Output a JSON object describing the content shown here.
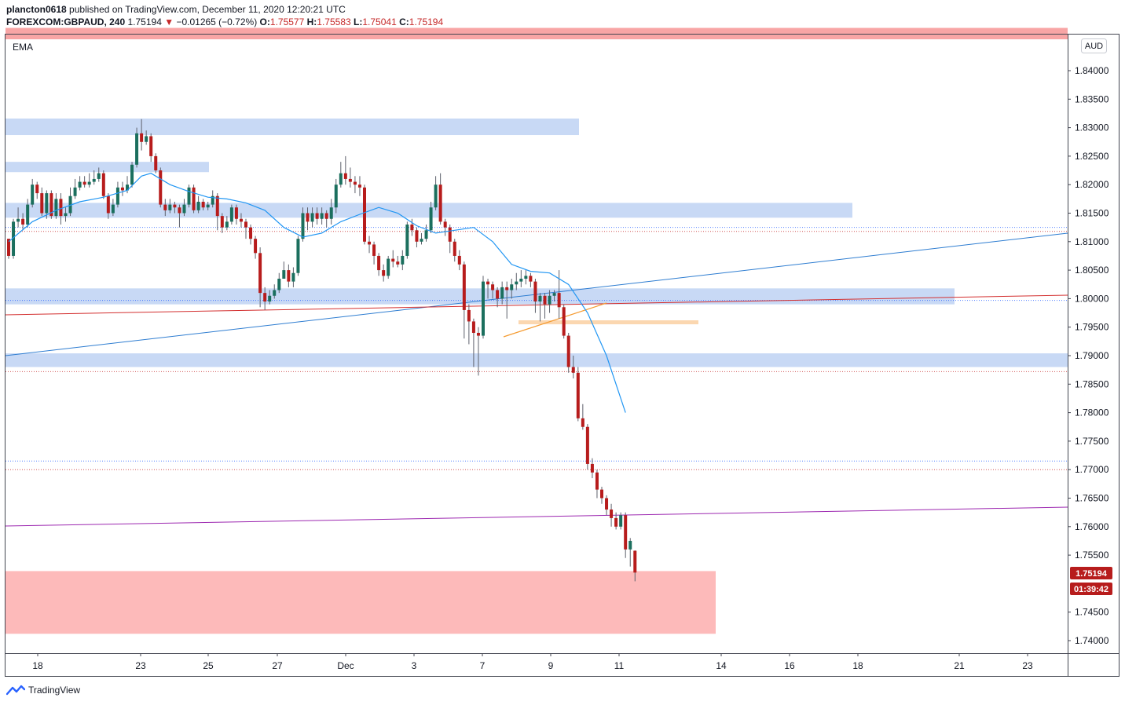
{
  "header": {
    "publisher": "plancton0618",
    "published_text": "published on TradingView.com, December 11, 2020 12:20:21 UTC",
    "symbol": "FOREXCOM:GBPAUD, 240",
    "last": "1.75194",
    "arrow": "▼",
    "change": "−0.01265 (−0.72%)",
    "o_label": "O:",
    "o_value": "1.75577",
    "h_label": "H:",
    "h_value": "1.75583",
    "l_label": "L:",
    "l_value": "1.75041",
    "c_label": "C:",
    "c_value": "1.75194"
  },
  "indicator_label": "EMA",
  "currency_badge": "AUD",
  "price_tag": "1.75194",
  "countdown_tag": "01:39:42",
  "brand": "TradingView",
  "chart_data": {
    "type": "candlestick",
    "y_ticks": [
      "1.84000",
      "1.83500",
      "1.83000",
      "1.82500",
      "1.82000",
      "1.81500",
      "1.81000",
      "1.80500",
      "1.80000",
      "1.79500",
      "1.79000",
      "1.78500",
      "1.78000",
      "1.77500",
      "1.77000",
      "1.76500",
      "1.76000",
      "1.75500",
      "1.74500",
      "1.74000"
    ],
    "y_tick_values": [
      1.84,
      1.835,
      1.83,
      1.825,
      1.82,
      1.815,
      1.81,
      1.805,
      1.8,
      1.795,
      1.79,
      1.785,
      1.78,
      1.775,
      1.77,
      1.765,
      1.76,
      1.755,
      1.745,
      1.74
    ],
    "ylim": [
      1.7375,
      1.8475
    ],
    "x_ticks": [
      {
        "label": "18",
        "x": 1
      },
      {
        "label": "23",
        "x": 20
      },
      {
        "label": "25",
        "x": 30
      },
      {
        "label": "27",
        "x": 40
      },
      {
        "label": "Dec",
        "x": 50
      },
      {
        "label": "3",
        "x": 60
      },
      {
        "label": "7",
        "x": 70
      },
      {
        "label": "9",
        "x": 80
      },
      {
        "label": "11",
        "x": 90
      },
      {
        "label": "14",
        "x": 105
      },
      {
        "label": "16",
        "x": 115
      },
      {
        "label": "18",
        "x": 125
      },
      {
        "label": "21",
        "x": 140
      },
      {
        "label": "23",
        "x": 150
      }
    ],
    "candles": [
      [
        1.8105,
        1.8075,
        1.8105,
        1.807
      ],
      [
        1.8075,
        1.8135,
        1.814,
        1.807
      ],
      [
        1.8135,
        1.814,
        1.816,
        1.8125
      ],
      [
        1.814,
        1.813,
        1.815,
        1.812
      ],
      [
        1.813,
        1.8165,
        1.8175,
        1.8125
      ],
      [
        1.8165,
        1.82,
        1.821,
        1.816
      ],
      [
        1.82,
        1.8185,
        1.8205,
        1.8175
      ],
      [
        1.8185,
        1.815,
        1.8195,
        1.8145
      ],
      [
        1.815,
        1.8185,
        1.819,
        1.814
      ],
      [
        1.8185,
        1.8145,
        1.819,
        1.814
      ],
      [
        1.8145,
        1.8175,
        1.8185,
        1.814
      ],
      [
        1.8175,
        1.8145,
        1.8185,
        1.813
      ],
      [
        1.8145,
        1.815,
        1.816,
        1.8135
      ],
      [
        1.815,
        1.818,
        1.8195,
        1.8145
      ],
      [
        1.818,
        1.8195,
        1.821,
        1.8175
      ],
      [
        1.8195,
        1.8205,
        1.8215,
        1.819
      ],
      [
        1.8205,
        1.82,
        1.8215,
        1.8195
      ],
      [
        1.82,
        1.8205,
        1.822,
        1.8195
      ],
      [
        1.8205,
        1.821,
        1.8225,
        1.82
      ],
      [
        1.821,
        1.822,
        1.823,
        1.8205
      ],
      [
        1.822,
        1.818,
        1.8225,
        1.8175
      ],
      [
        1.818,
        1.815,
        1.8185,
        1.814
      ],
      [
        1.815,
        1.8165,
        1.8175,
        1.8145
      ],
      [
        1.8165,
        1.8195,
        1.8205,
        1.816
      ],
      [
        1.8195,
        1.819,
        1.8205,
        1.818
      ],
      [
        1.819,
        1.82,
        1.8215,
        1.8185
      ],
      [
        1.82,
        1.8235,
        1.824,
        1.8195
      ],
      [
        1.8235,
        1.829,
        1.83,
        1.823
      ],
      [
        1.829,
        1.8275,
        1.8315,
        1.826
      ],
      [
        1.8275,
        1.8285,
        1.8295,
        1.827
      ],
      [
        1.8285,
        1.825,
        1.829,
        1.824
      ],
      [
        1.825,
        1.8225,
        1.8255,
        1.822
      ],
      [
        1.8225,
        1.8165,
        1.823,
        1.816
      ],
      [
        1.8165,
        1.8155,
        1.8175,
        1.8145
      ],
      [
        1.8155,
        1.8165,
        1.8175,
        1.815
      ],
      [
        1.8165,
        1.816,
        1.817,
        1.815
      ],
      [
        1.816,
        1.815,
        1.8165,
        1.8125
      ],
      [
        1.815,
        1.8165,
        1.8175,
        1.8145
      ],
      [
        1.8165,
        1.8195,
        1.82,
        1.816
      ],
      [
        1.8195,
        1.8155,
        1.82,
        1.815
      ],
      [
        1.8155,
        1.817,
        1.818,
        1.815
      ],
      [
        1.817,
        1.816,
        1.8175,
        1.8155
      ],
      [
        1.816,
        1.8165,
        1.817,
        1.8155
      ],
      [
        1.8165,
        1.818,
        1.819,
        1.816
      ],
      [
        1.818,
        1.8145,
        1.8185,
        1.812
      ],
      [
        1.8145,
        1.8125,
        1.815,
        1.8115
      ],
      [
        1.8125,
        1.8135,
        1.8145,
        1.812
      ],
      [
        1.8135,
        1.816,
        1.8165,
        1.813
      ],
      [
        1.816,
        1.814,
        1.8165,
        1.813
      ],
      [
        1.814,
        1.8135,
        1.815,
        1.8125
      ],
      [
        1.8135,
        1.8125,
        1.814,
        1.8105
      ],
      [
        1.8125,
        1.8105,
        1.813,
        1.8095
      ],
      [
        1.8105,
        1.808,
        1.811,
        1.807
      ],
      [
        1.808,
        1.801,
        1.809,
        1.7985
      ],
      [
        1.801,
        1.7995,
        1.802,
        1.798
      ],
      [
        1.7995,
        1.8005,
        1.8015,
        1.799
      ],
      [
        1.8005,
        1.8015,
        1.8025,
        1.8
      ],
      [
        1.8015,
        1.8035,
        1.8045,
        1.801
      ],
      [
        1.8035,
        1.805,
        1.8065,
        1.804
      ],
      [
        1.805,
        1.803,
        1.806,
        1.802
      ],
      [
        1.803,
        1.8045,
        1.8055,
        1.802
      ],
      [
        1.8045,
        1.8105,
        1.811,
        1.804
      ],
      [
        1.8105,
        1.815,
        1.816,
        1.81
      ],
      [
        1.815,
        1.8135,
        1.816,
        1.812
      ],
      [
        1.8135,
        1.815,
        1.816,
        1.8125
      ],
      [
        1.815,
        1.814,
        1.816,
        1.813
      ],
      [
        1.814,
        1.815,
        1.816,
        1.813
      ],
      [
        1.815,
        1.814,
        1.8155,
        1.8125
      ],
      [
        1.814,
        1.816,
        1.8175,
        1.813
      ],
      [
        1.816,
        1.82,
        1.821,
        1.815
      ],
      [
        1.82,
        1.822,
        1.824,
        1.8195
      ],
      [
        1.822,
        1.821,
        1.825,
        1.82
      ],
      [
        1.821,
        1.8205,
        1.823,
        1.8195
      ],
      [
        1.8205,
        1.82,
        1.8215,
        1.8185
      ],
      [
        1.82,
        1.8195,
        1.8215,
        1.818
      ],
      [
        1.8195,
        1.81,
        1.82,
        1.8095
      ],
      [
        1.81,
        1.8095,
        1.811,
        1.808
      ],
      [
        1.8095,
        1.8075,
        1.81,
        1.806
      ],
      [
        1.8075,
        1.805,
        1.808,
        1.804
      ],
      [
        1.805,
        1.804,
        1.806,
        1.803
      ],
      [
        1.804,
        1.807,
        1.8075,
        1.8035
      ],
      [
        1.807,
        1.8065,
        1.8085,
        1.8055
      ],
      [
        1.8065,
        1.806,
        1.8075,
        1.8055
      ],
      [
        1.806,
        1.8075,
        1.8085,
        1.805
      ],
      [
        1.8075,
        1.813,
        1.8135,
        1.807
      ],
      [
        1.813,
        1.812,
        1.814,
        1.811
      ],
      [
        1.812,
        1.81,
        1.8125,
        1.809
      ],
      [
        1.81,
        1.8105,
        1.8115,
        1.8095
      ],
      [
        1.8105,
        1.812,
        1.813,
        1.81
      ],
      [
        1.812,
        1.816,
        1.817,
        1.8115
      ],
      [
        1.816,
        1.82,
        1.8215,
        1.8155
      ],
      [
        1.82,
        1.8135,
        1.822,
        1.813
      ],
      [
        1.8135,
        1.8125,
        1.814,
        1.811
      ],
      [
        1.8125,
        1.81,
        1.813,
        1.808
      ],
      [
        1.81,
        1.8075,
        1.8105,
        1.8065
      ],
      [
        1.8075,
        1.806,
        1.8085,
        1.805
      ],
      [
        1.806,
        1.798,
        1.8065,
        1.793
      ],
      [
        1.798,
        1.796,
        1.799,
        1.792
      ],
      [
        1.796,
        1.794,
        1.7965,
        1.788
      ],
      [
        1.794,
        1.7935,
        1.795,
        1.7865
      ],
      [
        1.7935,
        1.803,
        1.804,
        1.793
      ],
      [
        1.803,
        1.8025,
        1.8035,
        1.8
      ],
      [
        1.8025,
        1.8015,
        1.803,
        1.8
      ],
      [
        1.8015,
        1.8,
        1.802,
        1.7985
      ],
      [
        1.8,
        1.802,
        1.803,
        1.799
      ],
      [
        1.802,
        1.8015,
        1.803,
        1.7965
      ],
      [
        1.8015,
        1.8025,
        1.8035,
        1.8
      ],
      [
        1.8025,
        1.803,
        1.8045,
        1.8015
      ],
      [
        1.803,
        1.8035,
        1.805,
        1.802
      ],
      [
        1.8035,
        1.804,
        1.805,
        1.8025
      ],
      [
        1.804,
        1.803,
        1.8045,
        1.802
      ],
      [
        1.803,
        1.7995,
        1.8035,
        1.7975
      ],
      [
        1.7995,
        1.8005,
        1.801,
        1.796
      ],
      [
        1.8005,
        1.799,
        1.801,
        1.7965
      ],
      [
        1.799,
        1.8005,
        1.8015,
        1.7975
      ],
      [
        1.8005,
        1.801,
        1.8015,
        1.7995
      ],
      [
        1.801,
        1.7985,
        1.805,
        1.7965
      ],
      [
        1.7985,
        1.7935,
        1.799,
        1.793
      ],
      [
        1.7935,
        1.788,
        1.794,
        1.787
      ],
      [
        1.788,
        1.787,
        1.79,
        1.786
      ],
      [
        1.787,
        1.779,
        1.788,
        1.7785
      ],
      [
        1.779,
        1.7775,
        1.7815,
        1.777
      ],
      [
        1.7775,
        1.771,
        1.778,
        1.77
      ],
      [
        1.771,
        1.7695,
        1.772,
        1.7685
      ],
      [
        1.7695,
        1.7665,
        1.77,
        1.765
      ],
      [
        1.7665,
        1.765,
        1.767,
        1.764
      ],
      [
        1.765,
        1.763,
        1.7655,
        1.762
      ],
      [
        1.763,
        1.7615,
        1.764,
        1.76
      ],
      [
        1.7615,
        1.76,
        1.7625,
        1.7595
      ],
      [
        1.76,
        1.762,
        1.7625,
        1.7595
      ],
      [
        1.762,
        1.756,
        1.7625,
        1.7545
      ],
      [
        1.756,
        1.7575,
        1.758,
        1.753
      ],
      [
        1.75577,
        1.75194,
        1.75583,
        1.75041
      ]
    ],
    "ema": [
      [
        0,
        1.81
      ],
      [
        5,
        1.8135
      ],
      [
        10,
        1.8155
      ],
      [
        15,
        1.817
      ],
      [
        20,
        1.8178
      ],
      [
        25,
        1.819
      ],
      [
        28,
        1.8215
      ],
      [
        30,
        1.822
      ],
      [
        34,
        1.82
      ],
      [
        38,
        1.8188
      ],
      [
        42,
        1.8178
      ],
      [
        46,
        1.8175
      ],
      [
        50,
        1.8168
      ],
      [
        54,
        1.8155
      ],
      [
        58,
        1.8125
      ],
      [
        62,
        1.8108
      ],
      [
        66,
        1.8115
      ],
      [
        70,
        1.8135
      ],
      [
        74,
        1.8148
      ],
      [
        78,
        1.816
      ],
      [
        82,
        1.815
      ],
      [
        86,
        1.8128
      ],
      [
        90,
        1.8115
      ],
      [
        94,
        1.812
      ],
      [
        98,
        1.8125
      ],
      [
        102,
        1.81
      ],
      [
        106,
        1.806
      ],
      [
        110,
        1.8048
      ],
      [
        114,
        1.8045
      ],
      [
        118,
        1.8025
      ],
      [
        122,
        1.7975
      ],
      [
        126,
        1.79
      ],
      [
        130,
        1.78
      ]
    ]
  }
}
